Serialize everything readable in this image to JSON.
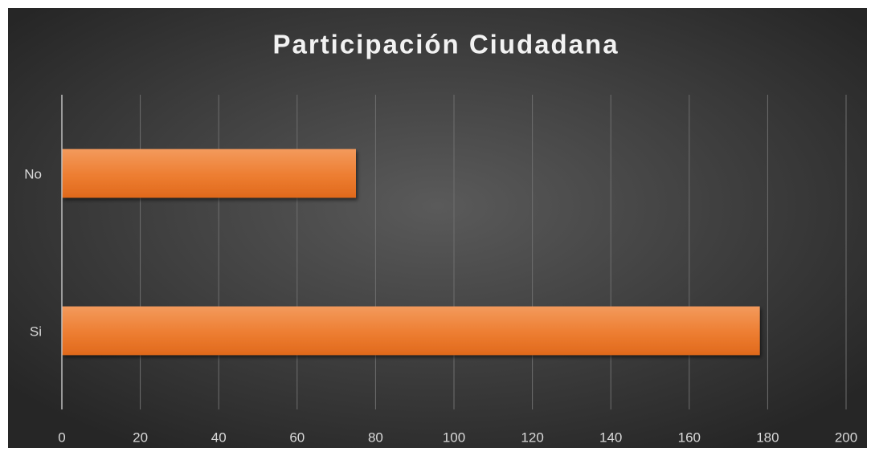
{
  "chart_data": {
    "type": "hbar",
    "title": "Participación Ciudadana",
    "categories": [
      "No",
      "Si"
    ],
    "values": [
      75,
      178
    ],
    "color": "#ed7d31",
    "xlim": [
      0,
      200
    ],
    "xticks": [
      0,
      20,
      40,
      60,
      80,
      100,
      120,
      140,
      160,
      180,
      200
    ],
    "grid": true
  }
}
